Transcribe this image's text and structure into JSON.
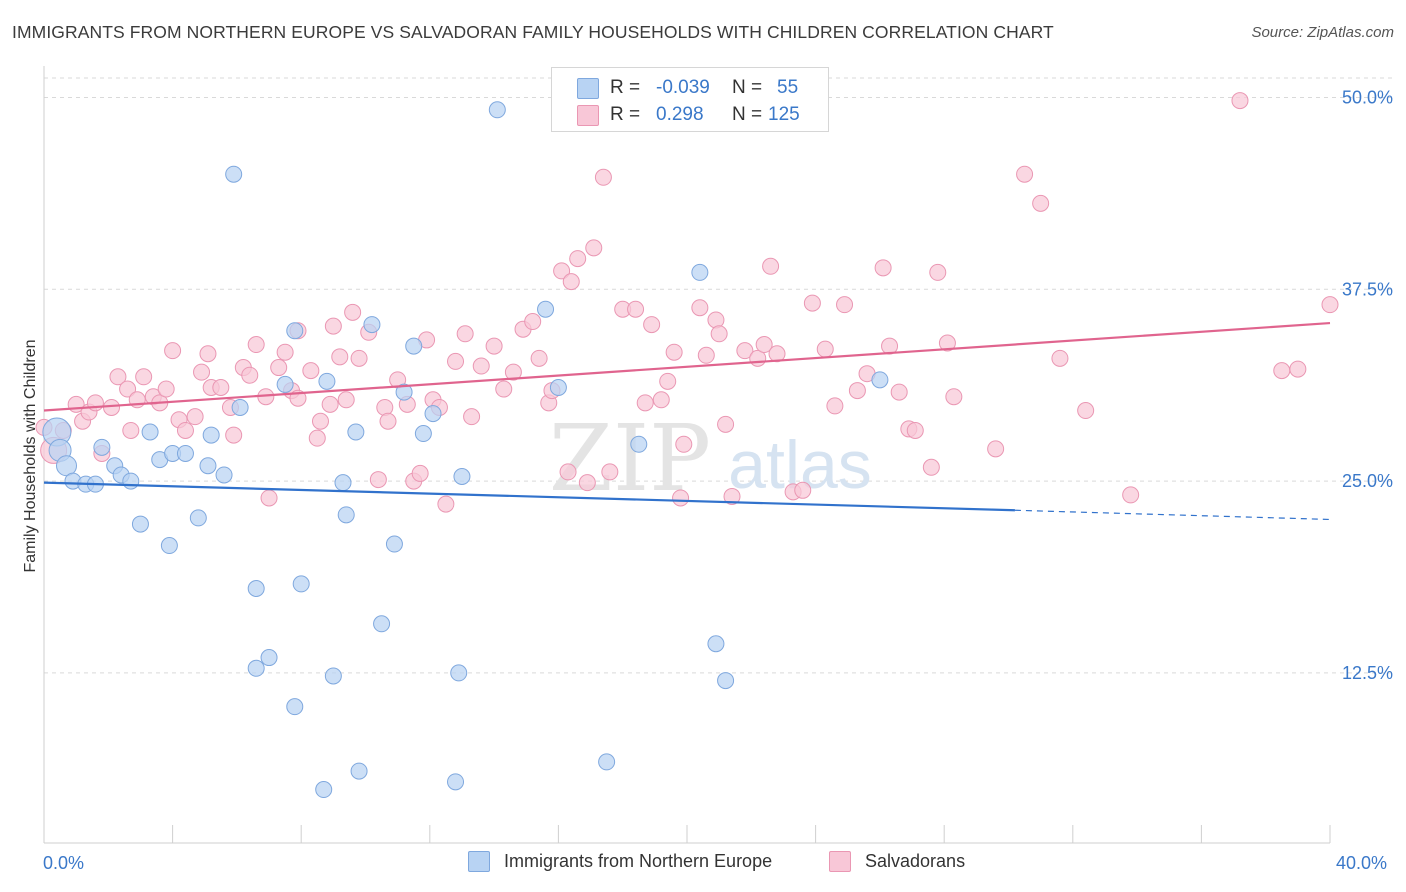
{
  "title": "IMMIGRANTS FROM NORTHERN EUROPE VS SALVADORAN FAMILY HOUSEHOLDS WITH CHILDREN CORRELATION CHART",
  "source": "Source: ZipAtlas.com",
  "watermark": {
    "zip": "ZIP",
    "atlas": "atlas"
  },
  "colors": {
    "blue_fill": "#b8d3f3",
    "blue_stroke": "#7fa8de",
    "blue_line": "#3172cc",
    "pink_fill": "#f8c7d7",
    "pink_stroke": "#ea97b3",
    "pink_line": "#e0648e",
    "tick_label": "#3a78c9",
    "grid": "#d9d9d9"
  },
  "legend": {
    "rows": [
      {
        "r_label": "R = ",
        "r_value": "-0.039",
        "n_label": "N = ",
        "n_value": "55"
      },
      {
        "r_label": "R = ",
        "r_value": "0.298",
        "n_label": "N = ",
        "n_value": "125"
      }
    ]
  },
  "bottom_legend": {
    "blue": "Immigrants from Northern Europe",
    "pink": "Salvadorans"
  },
  "chart_data": {
    "type": "scatter",
    "title": "IMMIGRANTS FROM NORTHERN EUROPE VS SALVADORAN FAMILY HOUSEHOLDS WITH CHILDREN CORRELATION CHART",
    "xlabel": "",
    "ylabel": "Family Households with Children",
    "xlim": [
      0,
      40
    ],
    "ylim": [
      0,
      52
    ],
    "x_tick_labels": [
      "0.0%",
      "40.0%"
    ],
    "y_ticks": [
      12.5,
      25.0,
      37.5,
      50.0
    ],
    "y_tick_labels": [
      "12.5%",
      "25.0%",
      "37.5%",
      "50.0%"
    ],
    "grid": true,
    "series": [
      {
        "name": "Immigrants from Northern Europe",
        "color": "blue",
        "r": -0.039,
        "n": 55,
        "trend": {
          "x0": 0,
          "y0": 24.9,
          "x1": 30.2,
          "y1": 23.1,
          "dash_to_x": 40,
          "dash_to_y": 22.5
        },
        "points": [
          [
            0.4,
            28.2,
            14
          ],
          [
            0.5,
            27.0,
            11
          ],
          [
            0.7,
            26.0,
            10
          ],
          [
            0.9,
            25.0,
            8
          ],
          [
            1.3,
            24.8,
            8
          ],
          [
            1.6,
            24.8,
            8
          ],
          [
            1.8,
            27.2,
            8
          ],
          [
            2.2,
            26.0,
            8
          ],
          [
            2.4,
            25.4,
            8
          ],
          [
            2.7,
            25.0,
            8
          ],
          [
            3.0,
            22.2,
            8
          ],
          [
            3.3,
            28.2,
            8
          ],
          [
            3.6,
            26.4,
            8
          ],
          [
            3.9,
            20.8,
            8
          ],
          [
            4.0,
            26.8,
            8
          ],
          [
            4.4,
            26.8,
            8
          ],
          [
            4.8,
            22.6,
            8
          ],
          [
            5.1,
            26.0,
            8
          ],
          [
            5.2,
            28.0,
            8
          ],
          [
            5.6,
            25.4,
            8
          ],
          [
            5.9,
            45.0,
            8
          ],
          [
            6.1,
            29.8,
            8
          ],
          [
            6.6,
            18.0,
            8
          ],
          [
            6.6,
            12.8,
            8
          ],
          [
            7.0,
            13.5,
            8
          ],
          [
            7.5,
            31.3,
            8
          ],
          [
            7.8,
            34.8,
            8
          ],
          [
            7.8,
            10.3,
            8
          ],
          [
            8.0,
            18.3,
            8
          ],
          [
            8.8,
            31.5,
            8
          ],
          [
            8.7,
            4.9,
            8
          ],
          [
            9.0,
            12.3,
            8
          ],
          [
            9.3,
            24.9,
            8
          ],
          [
            9.4,
            22.8,
            8
          ],
          [
            9.7,
            28.2,
            8
          ],
          [
            9.8,
            6.1,
            8
          ],
          [
            10.2,
            35.2,
            8
          ],
          [
            10.5,
            15.7,
            8
          ],
          [
            10.9,
            20.9,
            8
          ],
          [
            11.2,
            30.8,
            8
          ],
          [
            11.5,
            33.8,
            8
          ],
          [
            11.8,
            28.1,
            8
          ],
          [
            12.1,
            29.4,
            8
          ],
          [
            12.8,
            5.4,
            8
          ],
          [
            12.9,
            12.5,
            8
          ],
          [
            13.0,
            25.3,
            8
          ],
          [
            14.1,
            49.2,
            8
          ],
          [
            15.6,
            36.2,
            8
          ],
          [
            16.0,
            31.1,
            8
          ],
          [
            17.5,
            6.7,
            8
          ],
          [
            18.5,
            27.4,
            8
          ],
          [
            20.4,
            38.6,
            8
          ],
          [
            20.9,
            14.4,
            8
          ],
          [
            21.2,
            12.0,
            8
          ],
          [
            26.0,
            31.6,
            8
          ]
        ]
      },
      {
        "name": "Salvadorans",
        "color": "pink",
        "r": 0.298,
        "n": 125,
        "trend": {
          "x0": 0,
          "y0": 29.6,
          "x1": 40,
          "y1": 35.3
        },
        "points": [
          [
            0.3,
            27.0,
            13
          ],
          [
            0.6,
            28.3,
            8
          ],
          [
            1.0,
            30.0,
            8
          ],
          [
            1.2,
            28.9,
            8
          ],
          [
            1.4,
            29.5,
            8
          ],
          [
            1.6,
            30.1,
            8
          ],
          [
            1.8,
            26.8,
            8
          ],
          [
            2.1,
            29.8,
            8
          ],
          [
            2.3,
            31.8,
            8
          ],
          [
            2.6,
            31.0,
            8
          ],
          [
            2.7,
            28.3,
            8
          ],
          [
            2.9,
            30.3,
            8
          ],
          [
            3.1,
            31.8,
            8
          ],
          [
            3.4,
            30.5,
            8
          ],
          [
            3.6,
            30.1,
            8
          ],
          [
            3.8,
            31.0,
            8
          ],
          [
            4.0,
            33.5,
            8
          ],
          [
            4.2,
            29.0,
            8
          ],
          [
            4.4,
            28.3,
            8
          ],
          [
            4.7,
            29.2,
            8
          ],
          [
            4.9,
            32.1,
            8
          ],
          [
            5.1,
            33.3,
            8
          ],
          [
            5.2,
            31.1,
            8
          ],
          [
            5.5,
            31.1,
            8
          ],
          [
            5.8,
            29.8,
            8
          ],
          [
            5.9,
            28.0,
            8
          ],
          [
            6.2,
            32.4,
            8
          ],
          [
            6.4,
            31.9,
            8
          ],
          [
            6.6,
            33.9,
            8
          ],
          [
            6.9,
            30.5,
            8
          ],
          [
            7.0,
            23.9,
            8
          ],
          [
            7.3,
            32.4,
            8
          ],
          [
            7.5,
            33.4,
            8
          ],
          [
            7.9,
            34.8,
            8
          ],
          [
            7.7,
            30.9,
            8
          ],
          [
            7.9,
            30.4,
            8
          ],
          [
            8.3,
            32.2,
            8
          ],
          [
            8.5,
            27.8,
            8
          ],
          [
            8.6,
            28.9,
            8
          ],
          [
            8.9,
            30.0,
            8
          ],
          [
            9.0,
            35.1,
            8
          ],
          [
            9.2,
            33.1,
            8
          ],
          [
            9.4,
            30.3,
            8
          ],
          [
            9.6,
            36.0,
            8
          ],
          [
            9.8,
            33.0,
            8
          ],
          [
            10.1,
            34.7,
            8
          ],
          [
            10.4,
            25.1,
            8
          ],
          [
            10.6,
            29.8,
            8
          ],
          [
            10.7,
            28.9,
            8
          ],
          [
            11.0,
            31.6,
            8
          ],
          [
            11.3,
            30.0,
            8
          ],
          [
            11.5,
            25.0,
            8
          ],
          [
            11.7,
            25.5,
            8
          ],
          [
            11.9,
            34.2,
            8
          ],
          [
            12.1,
            30.3,
            8
          ],
          [
            12.3,
            29.8,
            8
          ],
          [
            12.5,
            23.5,
            8
          ],
          [
            12.8,
            32.8,
            8
          ],
          [
            13.1,
            34.6,
            8
          ],
          [
            13.3,
            29.2,
            8
          ],
          [
            13.6,
            32.5,
            8
          ],
          [
            14.0,
            33.8,
            8
          ],
          [
            14.3,
            31.0,
            8
          ],
          [
            14.6,
            32.1,
            8
          ],
          [
            14.9,
            34.9,
            8
          ],
          [
            15.2,
            35.4,
            8
          ],
          [
            15.4,
            33.0,
            8
          ],
          [
            15.7,
            30.1,
            8
          ],
          [
            15.8,
            30.9,
            8
          ],
          [
            16.1,
            38.7,
            8
          ],
          [
            16.3,
            25.6,
            8
          ],
          [
            16.4,
            38.0,
            8
          ],
          [
            16.6,
            39.5,
            8
          ],
          [
            16.9,
            24.9,
            8
          ],
          [
            17.1,
            40.2,
            8
          ],
          [
            17.4,
            44.8,
            8
          ],
          [
            17.6,
            25.6,
            8
          ],
          [
            18.0,
            36.2,
            8
          ],
          [
            18.4,
            36.2,
            8
          ],
          [
            18.7,
            30.1,
            8
          ],
          [
            18.9,
            35.2,
            8
          ],
          [
            19.2,
            30.3,
            8
          ],
          [
            19.4,
            31.5,
            8
          ],
          [
            19.6,
            33.4,
            8
          ],
          [
            19.8,
            23.9,
            8
          ],
          [
            19.9,
            27.4,
            8
          ],
          [
            20.4,
            36.3,
            8
          ],
          [
            20.6,
            33.2,
            8
          ],
          [
            20.9,
            35.5,
            8
          ],
          [
            21.0,
            34.6,
            8
          ],
          [
            21.2,
            28.7,
            8
          ],
          [
            21.4,
            24.0,
            8
          ],
          [
            21.8,
            33.5,
            8
          ],
          [
            22.2,
            33.0,
            8
          ],
          [
            22.4,
            33.9,
            8
          ],
          [
            22.6,
            39.0,
            8
          ],
          [
            22.8,
            33.3,
            8
          ],
          [
            23.3,
            24.3,
            8
          ],
          [
            23.6,
            24.4,
            8
          ],
          [
            23.9,
            36.6,
            8
          ],
          [
            24.3,
            33.6,
            8
          ],
          [
            24.6,
            29.9,
            8
          ],
          [
            24.9,
            36.5,
            8
          ],
          [
            25.3,
            30.9,
            8
          ],
          [
            25.6,
            32.0,
            8
          ],
          [
            26.1,
            38.9,
            8
          ],
          [
            26.3,
            33.8,
            8
          ],
          [
            26.6,
            30.8,
            8
          ],
          [
            26.9,
            28.4,
            8
          ],
          [
            27.1,
            28.3,
            8
          ],
          [
            27.6,
            25.9,
            8
          ],
          [
            27.8,
            38.6,
            8
          ],
          [
            28.1,
            34.0,
            8
          ],
          [
            28.3,
            30.5,
            8
          ],
          [
            29.6,
            27.1,
            8
          ],
          [
            30.5,
            45.0,
            8
          ],
          [
            31.0,
            43.1,
            8
          ],
          [
            31.6,
            33.0,
            8
          ],
          [
            32.4,
            29.6,
            8
          ],
          [
            33.8,
            24.1,
            8
          ],
          [
            37.2,
            49.8,
            8
          ],
          [
            38.5,
            32.2,
            8
          ],
          [
            39.0,
            32.3,
            8
          ],
          [
            40.0,
            36.5,
            8
          ],
          [
            0.0,
            28.5,
            8
          ]
        ]
      }
    ]
  }
}
